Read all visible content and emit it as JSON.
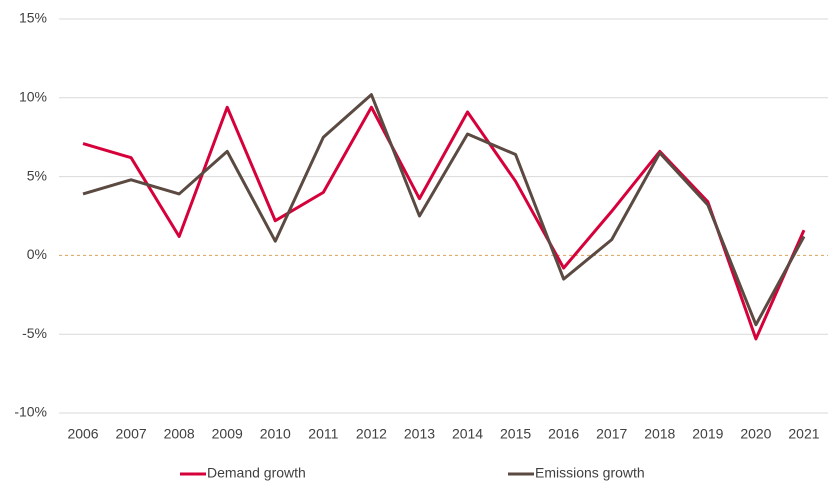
{
  "chart_data": {
    "type": "line",
    "categories": [
      "2006",
      "2007",
      "2008",
      "2009",
      "2010",
      "2011",
      "2012",
      "2013",
      "2014",
      "2015",
      "2016",
      "2017",
      "2018",
      "2019",
      "2020",
      "2021"
    ],
    "series": [
      {
        "name": "Demand growth",
        "color": "#d6003a",
        "values": [
          7.1,
          6.2,
          1.2,
          9.4,
          2.2,
          4.0,
          9.4,
          3.6,
          9.1,
          4.7,
          -0.8,
          2.8,
          6.6,
          3.4,
          -5.3,
          1.6
        ]
      },
      {
        "name": "Emissions growth",
        "color": "#5b4a42",
        "values": [
          3.9,
          4.8,
          3.9,
          6.6,
          0.9,
          7.5,
          10.2,
          2.5,
          7.7,
          6.4,
          -1.5,
          1.0,
          6.5,
          3.2,
          -4.4,
          1.2
        ]
      }
    ],
    "ylim": [
      -10,
      15
    ],
    "yticks": [
      {
        "value": -10,
        "label": "-10%"
      },
      {
        "value": -5,
        "label": "-5%"
      },
      {
        "value": 0,
        "label": "0%"
      },
      {
        "value": 5,
        "label": "5%"
      },
      {
        "value": 10,
        "label": "10%"
      },
      {
        "value": 15,
        "label": "15%"
      }
    ],
    "grid": true
  }
}
